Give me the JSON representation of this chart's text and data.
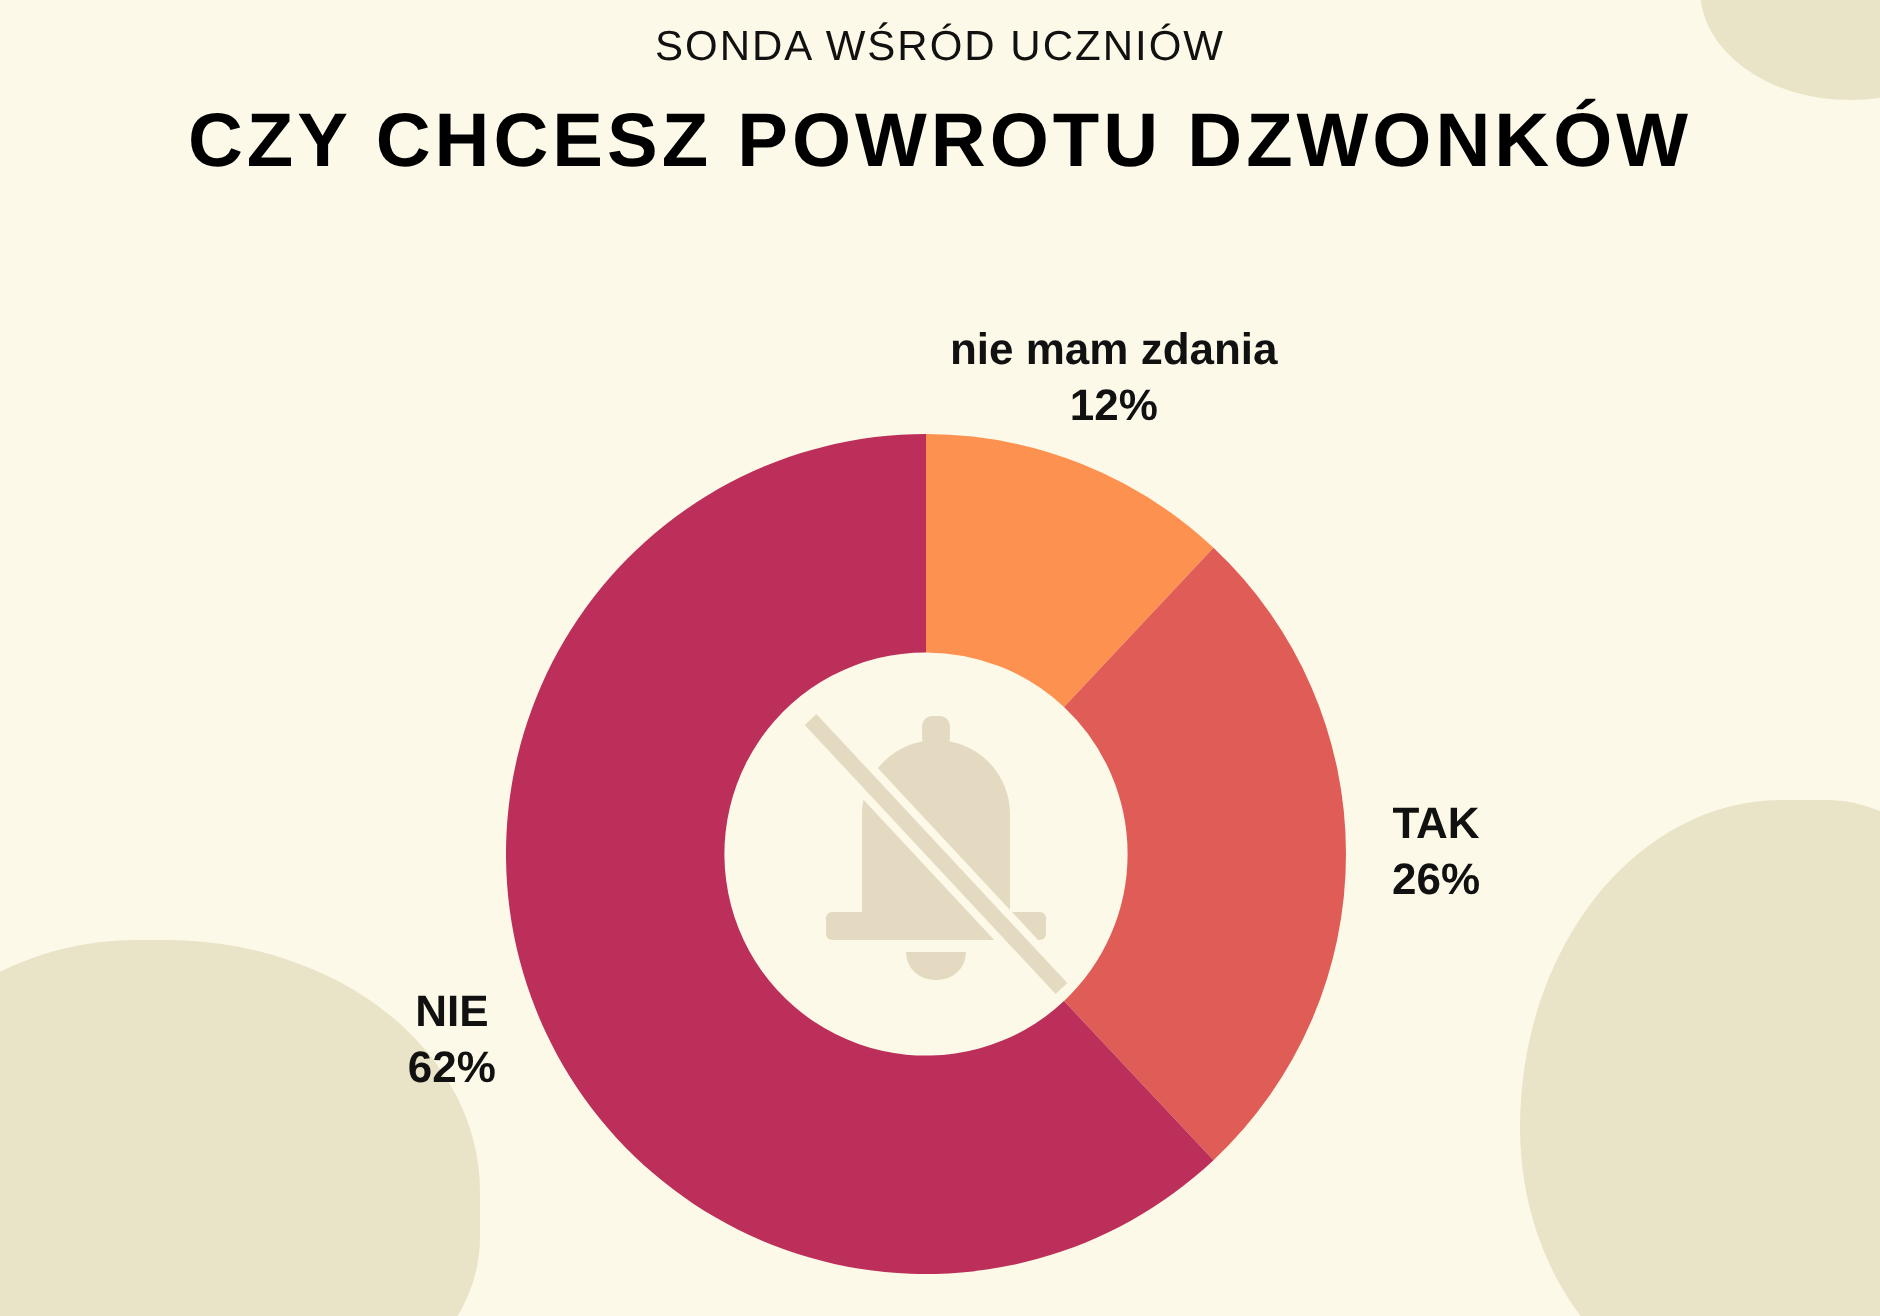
{
  "chart_data": {
    "type": "donut",
    "subtitle": "SONDA WŚRÓD UCZNIÓW",
    "title": "CZY CHCESZ POWROTU DZWONKÓW",
    "categories": [
      "nie mam zdania",
      "TAK",
      "NIE"
    ],
    "values": [
      12,
      26,
      62
    ],
    "colors": [
      "#fd9150",
      "#e05d57",
      "#bb2f5a"
    ],
    "value_labels": [
      "12%",
      "26%",
      "62%"
    ],
    "legend": false
  }
}
